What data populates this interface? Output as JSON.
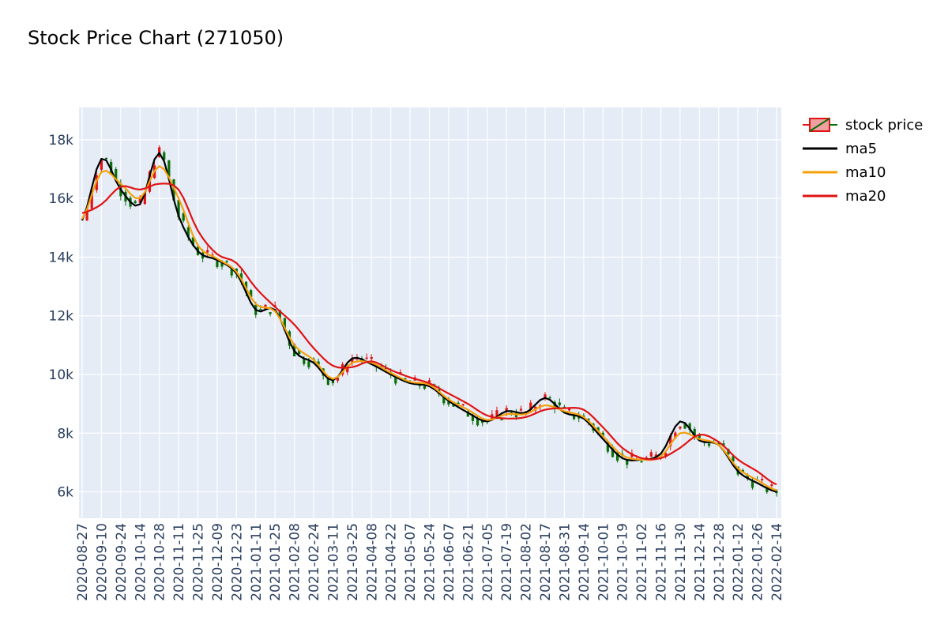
{
  "chart_data": {
    "type": "candlestick",
    "title": "Stock Price Chart (271050)",
    "xlabel": "",
    "ylabel": "",
    "x_tick_labels": [
      "2020-08-27",
      "2020-09-10",
      "2020-09-24",
      "2020-10-14",
      "2020-10-28",
      "2020-11-11",
      "2020-11-25",
      "2020-12-09",
      "2020-12-23",
      "2021-01-11",
      "2021-01-25",
      "2021-02-08",
      "2021-02-24",
      "2021-03-11",
      "2021-03-25",
      "2021-04-08",
      "2021-04-22",
      "2021-05-07",
      "2021-05-24",
      "2021-06-07",
      "2021-06-21",
      "2021-07-05",
      "2021-07-19",
      "2021-08-02",
      "2021-08-17",
      "2021-08-31",
      "2021-09-14",
      "2021-10-01",
      "2021-10-19",
      "2021-11-02",
      "2021-11-16",
      "2021-11-30",
      "2021-12-14",
      "2021-12-28",
      "2022-01-12",
      "2022-01-26",
      "2022-02-14"
    ],
    "y_ticks": [
      6000,
      8000,
      10000,
      12000,
      14000,
      16000,
      18000
    ],
    "y_tick_labels": [
      "6k",
      "8k",
      "10k",
      "12k",
      "14k",
      "16k",
      "18k"
    ],
    "ylim": [
      5100,
      19100
    ],
    "grid": true,
    "legend_position": "top-right",
    "legend": [
      "stock price",
      "ma5",
      "ma10",
      "ma20"
    ],
    "colors": {
      "increasing": "#e01414",
      "decreasing": "#0a6e0a",
      "ma5": "#000000",
      "ma10": "#f5a00a",
      "ma20": "#e01414",
      "plot_bg": "#e5ecf6",
      "grid": "#ffffff"
    },
    "series": [
      {
        "name": "ma5",
        "close_at_ticks": [
          15250,
          17350,
          16300,
          15800,
          17550,
          15400,
          14200,
          13900,
          13450,
          12200,
          12200,
          10800,
          10400,
          9800,
          10550,
          10350,
          10000,
          9700,
          9600,
          9100,
          8700,
          8400,
          8750,
          8700,
          9200,
          8700,
          8500,
          7800,
          7150,
          7100,
          7300,
          8400,
          7750,
          7600,
          6700,
          6300,
          6000
        ]
      },
      {
        "name": "ma10",
        "close_at_ticks": [
          15300,
          16900,
          16500,
          16000,
          17100,
          16000,
          14400,
          13950,
          13500,
          12400,
          12150,
          11000,
          10500,
          9850,
          10400,
          10400,
          10050,
          9750,
          9650,
          9150,
          8800,
          8450,
          8650,
          8650,
          8950,
          8750,
          8550,
          7900,
          7250,
          7100,
          7200,
          8000,
          7800,
          7600,
          6800,
          6400,
          6050
        ]
      },
      {
        "name": "ma20",
        "close_at_ticks": [
          15500,
          15800,
          16400,
          16300,
          16500,
          16300,
          14900,
          14100,
          13800,
          12950,
          12300,
          11700,
          10900,
          10300,
          10250,
          10450,
          10150,
          9900,
          9700,
          9350,
          9000,
          8600,
          8500,
          8550,
          8800,
          8850,
          8800,
          8200,
          7500,
          7150,
          7150,
          7500,
          7950,
          7700,
          7100,
          6700,
          6250
        ]
      }
    ]
  },
  "legend_items": [
    {
      "label": "stock price"
    },
    {
      "label": "ma5"
    },
    {
      "label": "ma10"
    },
    {
      "label": "ma20"
    }
  ]
}
